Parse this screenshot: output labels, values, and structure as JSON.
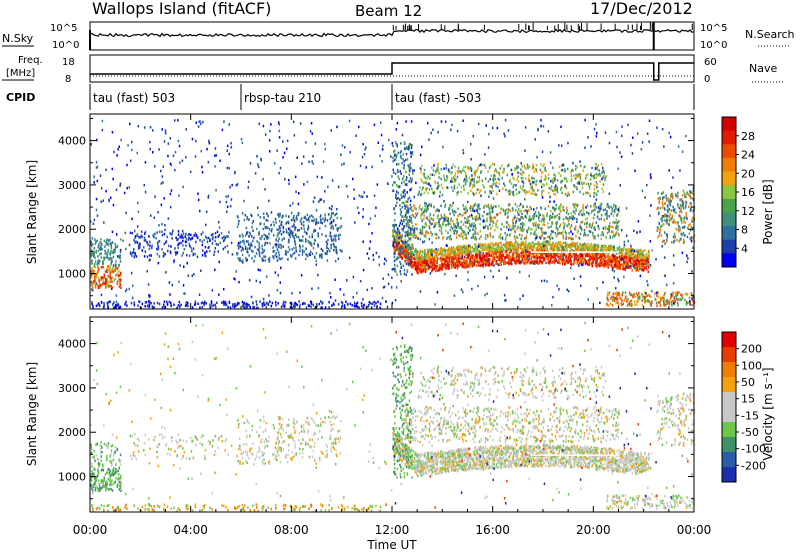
{
  "header": {
    "title": "Wallops Island (fitACF)",
    "beam": "Beam 12",
    "date": "17/Dec/2012"
  },
  "status_panels": {
    "nsky_label": "N.Sky",
    "nsearch_label": "N.Search",
    "freq_label_1": "Freq.",
    "freq_label_2": "[MHz]",
    "nave_label": "Nave",
    "cpid_label": "CPID",
    "nsky_ticks": [
      "10^5",
      "10^0"
    ],
    "nsearch_ticks": [
      "10^5",
      "10^0"
    ],
    "freq_ticks": [
      "18",
      "8"
    ],
    "nave_ticks": [
      "60",
      "0"
    ],
    "cpid_segments": [
      {
        "label": "tau (fast) 503",
        "start_hour": 0
      },
      {
        "label": "rbsp-tau 210",
        "start_hour": 6
      },
      {
        "label": "tau (fast) -503",
        "start_hour": 12
      }
    ]
  },
  "chart_data": [
    {
      "type": "heatmap",
      "panel": "power",
      "ylabel": "Slant Range [km]",
      "yticks": [
        "1000",
        "2000",
        "3000",
        "4000"
      ],
      "ylim": [
        200,
        4600
      ],
      "xlim": [
        0,
        24
      ],
      "colorbar_label": "Power [dB]",
      "colorbar_ticks": [
        "28",
        "24",
        "20",
        "16",
        "12",
        "8",
        "4"
      ],
      "colorbar_colors": [
        "#0000ee",
        "#1b3fa8",
        "#2e6fa0",
        "#3f8f7a",
        "#4aa24a",
        "#8cc63f",
        "#f2a20f",
        "#f07d00",
        "#ec4b00",
        "#e21a00",
        "#d40000"
      ]
    },
    {
      "type": "heatmap",
      "panel": "velocity",
      "ylabel": "Slant Range [km]",
      "yticks": [
        "1000",
        "2000",
        "3000",
        "4000"
      ],
      "ylim": [
        200,
        4600
      ],
      "xlim": [
        0,
        24
      ],
      "xlabel": "Time UT",
      "xticks": [
        "00:00",
        "04:00",
        "08:00",
        "12:00",
        "16:00",
        "20:00",
        "00:00"
      ],
      "colorbar_label": "Velocity [m s⁻¹]",
      "colorbar_ticks": [
        "200",
        "100",
        "50",
        "15",
        "-15",
        "-50",
        "-100",
        "-200"
      ],
      "colorbar_colors": [
        "#1a2fb0",
        "#2a5ca8",
        "#3f8f6a",
        "#6cc64a",
        "#c8c8c8",
        "#c8c8c8",
        "#f2a20f",
        "#f07d00",
        "#e83c00",
        "#e00000"
      ]
    }
  ]
}
